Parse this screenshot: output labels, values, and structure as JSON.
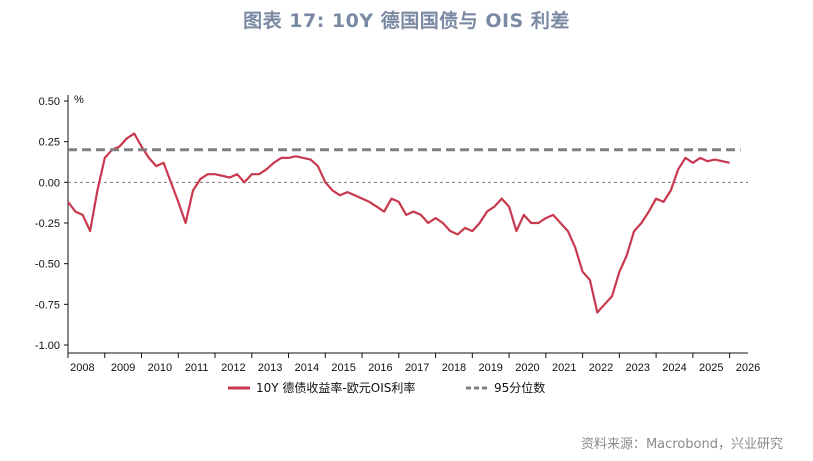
{
  "header": {
    "title": "图表 17: 10Y 德国国债与 OIS 利差"
  },
  "footer": {
    "source": "资料来源：Macrobond，兴业研究"
  },
  "chart_data": {
    "type": "line",
    "unit_label": "%",
    "ylim": [
      -1.0,
      0.5
    ],
    "y_ticks": [
      0.5,
      0.25,
      0.0,
      -0.25,
      -0.5,
      -0.75,
      -1.0
    ],
    "y_tick_labels": [
      "0.50",
      "0.25",
      "0.00",
      "-0.25",
      "-0.50",
      "-0.75",
      "-1.00"
    ],
    "xlim": [
      2008.0,
      2026.5
    ],
    "x_tick_labels": [
      "2008",
      "2009",
      "2010",
      "2011",
      "2012",
      "2013",
      "2014",
      "2015",
      "2016",
      "2017",
      "2018",
      "2019",
      "2020",
      "2021",
      "2022",
      "2023",
      "2024",
      "2025",
      "2026"
    ],
    "zero_line": true,
    "legend_position": "bottom-center",
    "series": [
      {
        "name": "10Y 德债收益率-欧元OIS利率",
        "color": "#c8394f",
        "style": "solid",
        "x": [
          2008.0,
          2008.2,
          2008.4,
          2008.6,
          2008.8,
          2009.0,
          2009.2,
          2009.4,
          2009.6,
          2009.8,
          2010.0,
          2010.2,
          2010.4,
          2010.6,
          2010.8,
          2011.0,
          2011.2,
          2011.4,
          2011.6,
          2011.8,
          2012.0,
          2012.2,
          2012.4,
          2012.6,
          2012.8,
          2013.0,
          2013.2,
          2013.4,
          2013.6,
          2013.8,
          2014.0,
          2014.2,
          2014.4,
          2014.6,
          2014.8,
          2015.0,
          2015.2,
          2015.4,
          2015.6,
          2015.8,
          2016.0,
          2016.2,
          2016.4,
          2016.6,
          2016.8,
          2017.0,
          2017.2,
          2017.4,
          2017.6,
          2017.8,
          2018.0,
          2018.2,
          2018.4,
          2018.6,
          2018.8,
          2019.0,
          2019.2,
          2019.4,
          2019.6,
          2019.8,
          2020.0,
          2020.2,
          2020.4,
          2020.6,
          2020.8,
          2021.0,
          2021.2,
          2021.4,
          2021.6,
          2021.8,
          2022.0,
          2022.2,
          2022.4,
          2022.6,
          2022.8,
          2023.0,
          2023.2,
          2023.4,
          2023.6,
          2023.8,
          2024.0,
          2024.2,
          2024.4,
          2024.6,
          2024.8,
          2025.0,
          2025.2,
          2025.4,
          2025.6,
          2025.8,
          2026.0
        ],
        "y": [
          -0.12,
          -0.18,
          -0.2,
          -0.3,
          -0.05,
          0.15,
          0.2,
          0.22,
          0.27,
          0.3,
          0.22,
          0.15,
          0.1,
          0.12,
          0.0,
          -0.12,
          -0.25,
          -0.05,
          0.02,
          0.05,
          0.05,
          0.04,
          0.03,
          0.05,
          0.0,
          0.05,
          0.05,
          0.08,
          0.12,
          0.15,
          0.15,
          0.16,
          0.15,
          0.14,
          0.1,
          0.0,
          -0.05,
          -0.08,
          -0.06,
          -0.08,
          -0.1,
          -0.12,
          -0.15,
          -0.18,
          -0.1,
          -0.12,
          -0.2,
          -0.18,
          -0.2,
          -0.25,
          -0.22,
          -0.25,
          -0.3,
          -0.32,
          -0.28,
          -0.3,
          -0.25,
          -0.18,
          -0.15,
          -0.1,
          -0.15,
          -0.3,
          -0.2,
          -0.25,
          -0.25,
          -0.22,
          -0.2,
          -0.25,
          -0.3,
          -0.4,
          -0.55,
          -0.6,
          -0.8,
          -0.75,
          -0.7,
          -0.55,
          -0.45,
          -0.3,
          -0.25,
          -0.18,
          -0.1,
          -0.12,
          -0.05,
          0.08,
          0.15,
          0.12,
          0.15,
          0.13,
          0.14,
          0.13,
          0.12
        ]
      },
      {
        "name": "95分位数",
        "color": "#808080",
        "style": "dashed",
        "x": [
          2008.0,
          2026.3
        ],
        "y": [
          0.2,
          0.2
        ]
      }
    ]
  }
}
